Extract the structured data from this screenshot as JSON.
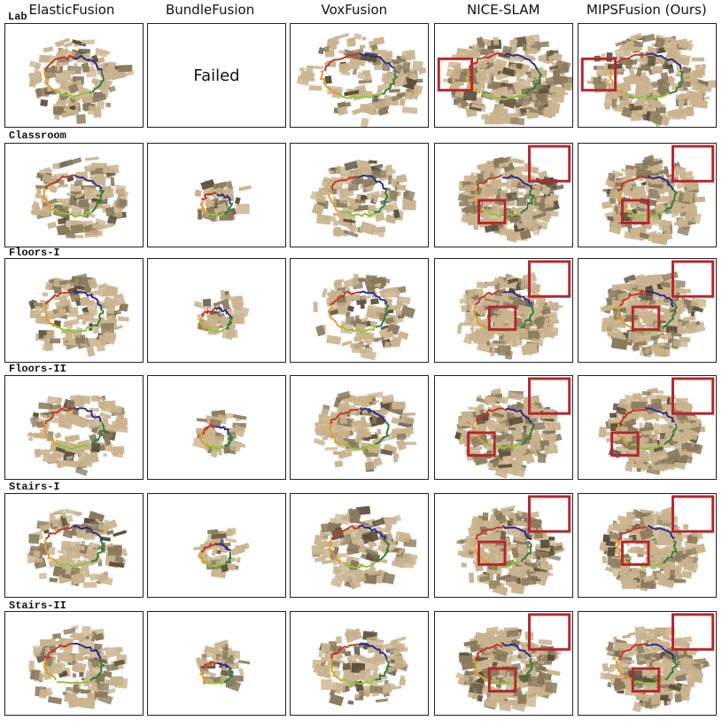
{
  "columns": [
    {
      "key": "elasticfusion",
      "label": "ElasticFusion"
    },
    {
      "key": "bundlefusion",
      "label": "BundleFusion"
    },
    {
      "key": "voxfusion",
      "label": "VoxFusion"
    },
    {
      "key": "niceslam",
      "label": "NICE-SLAM"
    },
    {
      "key": "mipsfusion",
      "label": "MIPSFusion (Ours)"
    }
  ],
  "rows": [
    {
      "key": "lab",
      "label": "Lab"
    },
    {
      "key": "classroom",
      "label": "Classroom"
    },
    {
      "key": "floors1",
      "label": "Floors-I"
    },
    {
      "key": "floors2",
      "label": "Floors-II"
    },
    {
      "key": "stairs1",
      "label": "Stairs-I"
    },
    {
      "key": "stairs2",
      "label": "Stairs-II"
    }
  ],
  "failed_text": "Failed",
  "colors": {
    "mesh": "#c9b38e",
    "mesh_dark": "#8a7a5c",
    "mesh_shadow": "#5a4e3a",
    "highlight_box": "#b5272d",
    "trajectory": [
      "#2b2b8f",
      "#2f7f3f",
      "#8fc43a",
      "#d9a030",
      "#c0392b"
    ]
  }
}
